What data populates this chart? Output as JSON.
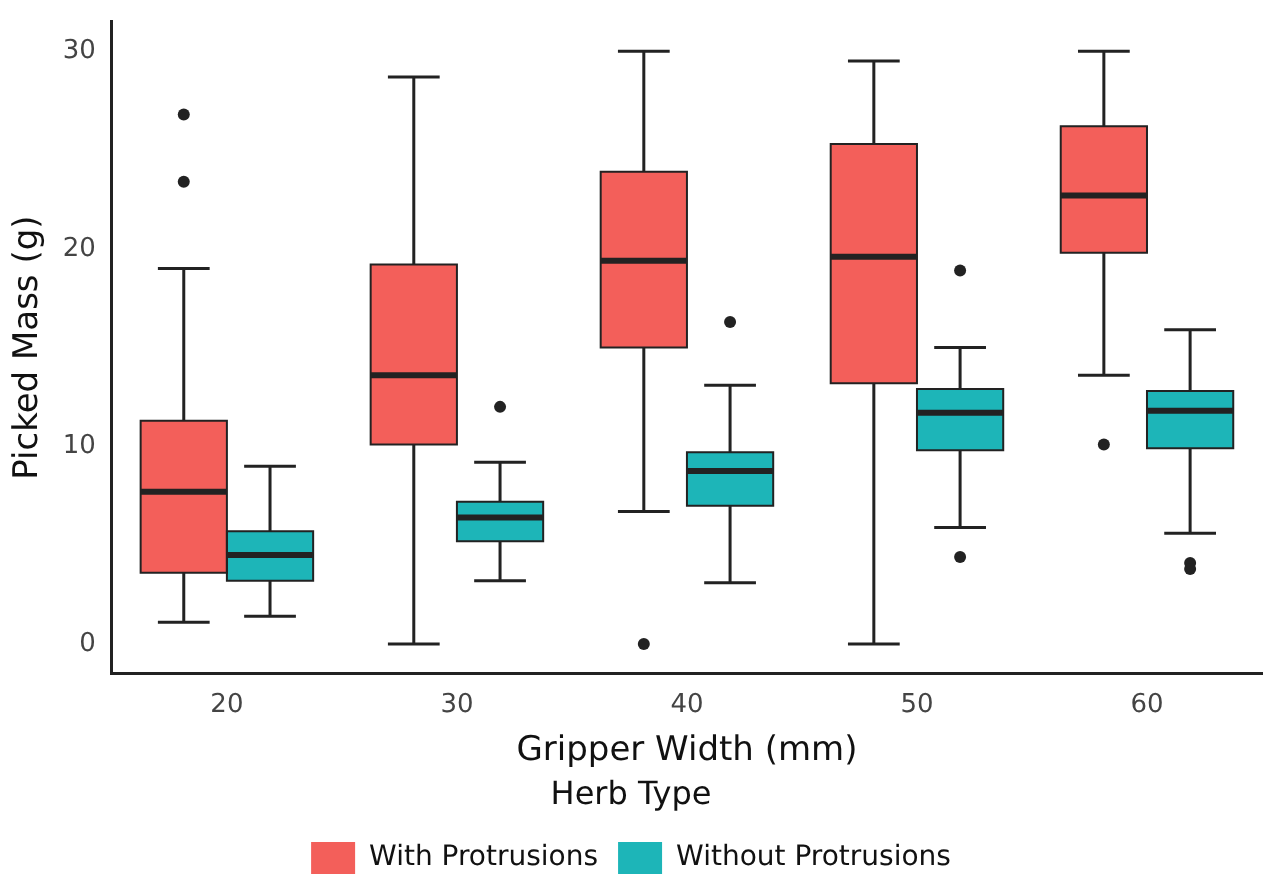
{
  "chart_data": {
    "type": "box",
    "xlabel": "Gripper Width (mm)",
    "ylabel": "Picked Mass (g)",
    "legend_title": "Herb Type",
    "legend": "bottom",
    "grid": false,
    "categories": [
      "20",
      "30",
      "40",
      "50",
      "60"
    ],
    "ylim": [
      -1.5,
      31.5
    ],
    "yticks": [
      0,
      10,
      20,
      30
    ],
    "series": [
      {
        "name": "With Protrusions",
        "color": "#f35f5a",
        "boxes": [
          {
            "low": 1.1,
            "q1": 3.6,
            "median": 7.7,
            "q3": 11.3,
            "high": 19.0,
            "outliers": [
              26.8,
              23.4
            ]
          },
          {
            "low": 0,
            "q1": 10.1,
            "median": 13.6,
            "q3": 19.2,
            "high": 28.7
          },
          {
            "low": 6.7,
            "q1": 15.0,
            "median": 19.4,
            "q3": 23.9,
            "high": 30.0,
            "outliers": [
              0
            ]
          },
          {
            "low": 0,
            "q1": 13.2,
            "median": 19.6,
            "q3": 25.3,
            "high": 29.5
          },
          {
            "low": 13.6,
            "q1": 19.8,
            "median": 22.7,
            "q3": 26.2,
            "high": 30.0,
            "outliers": [
              10.1
            ]
          }
        ]
      },
      {
        "name": "Without Protrusions",
        "color": "#1db5b8",
        "boxes": [
          {
            "low": 1.4,
            "q1": 3.2,
            "median": 4.5,
            "q3": 5.7,
            "high": 9.0
          },
          {
            "low": 3.2,
            "q1": 5.2,
            "median": 6.4,
            "q3": 7.2,
            "high": 9.2,
            "outliers": [
              12.0
            ]
          },
          {
            "low": 3.1,
            "q1": 7.0,
            "median": 8.75,
            "q3": 9.7,
            "high": 13.1,
            "outliers": [
              16.3
            ]
          },
          {
            "low": 5.9,
            "q1": 9.8,
            "median": 11.7,
            "q3": 12.9,
            "high": 15.0,
            "outliers": [
              18.9,
              4.4
            ]
          },
          {
            "low": 5.6,
            "q1": 9.9,
            "median": 11.8,
            "q3": 12.8,
            "high": 15.9,
            "outliers": [
              4.1,
              3.8
            ]
          }
        ]
      }
    ]
  }
}
